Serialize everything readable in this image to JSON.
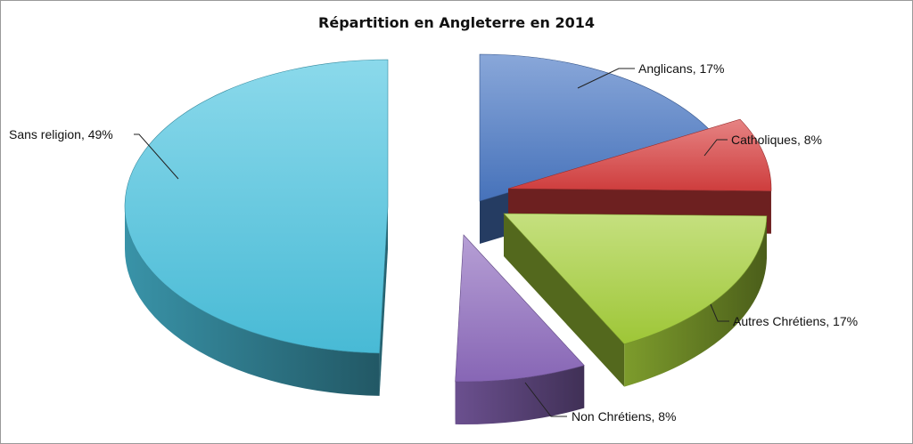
{
  "chart_data": {
    "type": "pie",
    "title": "Répartition en Angleterre en 2014",
    "slices": [
      {
        "name": "Anglicans",
        "value": 17,
        "label": "Anglicans, 17%",
        "color": "#4a78c4"
      },
      {
        "name": "Catholiques",
        "value": 8,
        "label": "Catholiques, 8%",
        "color": "#d94040"
      },
      {
        "name": "Autres Chrétiens",
        "value": 17,
        "label": "Autres Chrétiens, 17%",
        "color": "#a6d03a"
      },
      {
        "name": "Non Chrétiens",
        "value": 8,
        "label": "Non Chrétiens, 8%",
        "color": "#8e6bbf"
      },
      {
        "name": "Sans religion",
        "value": 49,
        "label": "Sans religion, 49%",
        "color": "#4cc4e0"
      }
    ],
    "style": "3d-exploded"
  }
}
